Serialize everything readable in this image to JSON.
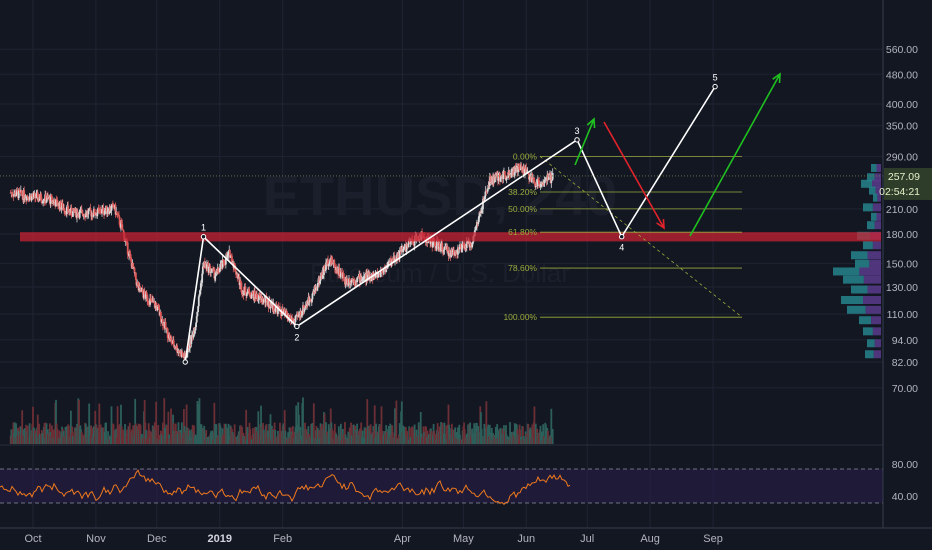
{
  "chart_data": {
    "type": "candlestick",
    "symbol_watermark": "ETHUSD, 240",
    "symbol_description": "Ethereum / U.S. Dollar",
    "x_ticks": [
      "Oct",
      "Nov",
      "Dec",
      "2019",
      "Feb",
      "Apr",
      "May",
      "Jun",
      "Jul",
      "Aug",
      "Sep"
    ],
    "y_ticks": [
      "560.00",
      "480.00",
      "400.00",
      "350.00",
      "290.00",
      "210.00",
      "180.00",
      "150.00",
      "130.00",
      "110.00",
      "94.00",
      "82.00",
      "70.00"
    ],
    "price_scale": "log",
    "last_price": "257.09",
    "countdown": "02:54:21",
    "rsi_ticks": [
      "80.00",
      "40.00"
    ],
    "fib_levels": [
      {
        "label": "0.00%",
        "price": 290
      },
      {
        "label": "38.20%",
        "price": 233
      },
      {
        "label": "50.00%",
        "price": 210
      },
      {
        "label": "61.80%",
        "price": 182
      },
      {
        "label": "78.60%",
        "price": 146
      },
      {
        "label": "100.00%",
        "price": 108
      }
    ],
    "wave_labels": [
      "1",
      "2",
      "3",
      "4",
      "5"
    ],
    "waves": [
      {
        "label": "",
        "date": "2018-12-15",
        "price": 82
      },
      {
        "label": "1",
        "date": "2018-12-24",
        "price": 177
      },
      {
        "label": "2",
        "date": "2019-02-08",
        "price": 102
      },
      {
        "label": "3",
        "date": "2019-06-26",
        "price": 321
      },
      {
        "label": "4",
        "date": "2019-07-18",
        "price": 177
      },
      {
        "label": "5",
        "date": "2019-09-02",
        "price": 445
      }
    ],
    "support_zone": {
      "low": 172,
      "high": 182
    },
    "colors": {
      "background": "#131722",
      "grid": "#1f2433",
      "up": "#d9d9d9",
      "down": "#e05a5a",
      "wave_line": "#ffffff",
      "fib": "#9aab3c",
      "support_zone": "#c82333",
      "arrow_green": "#1fc11f",
      "arrow_red": "#e0232b",
      "rsi_line": "#f07a1e",
      "rsi_band": "#2a1e4a",
      "last_price_badge": "#2e3d2a",
      "last_price_text": "#e6f0c8"
    }
  }
}
